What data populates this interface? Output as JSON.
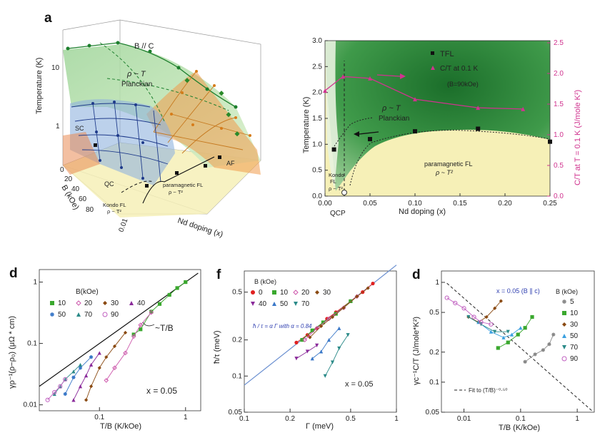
{
  "panel_letters": {
    "a": "a",
    "d1": "d",
    "f": "f",
    "d2": "d"
  },
  "colors": {
    "green": "#1d7f2d",
    "pink": "#d0338f",
    "sand": "#f6f0b7",
    "blue_surface": "#8fb2de",
    "orange_surface": "#f09a4a"
  },
  "chart_data": [
    {
      "type": "scatter",
      "panel": "a-left",
      "three_d": true,
      "title": "B // C",
      "xlabel": "Nd doping (x)",
      "ylabel": "B (kOe)",
      "zlabel": "Temperature (K)",
      "zticks": [
        "1",
        "10"
      ],
      "yticks": [
        "0",
        "20",
        "40",
        "60",
        "80"
      ],
      "xticks": [
        "0.01"
      ],
      "region_labels": {
        "planckian_1": "ρ ~ T",
        "planckian_2": "Planckian",
        "sc": "SC",
        "qc": "QC",
        "af": "AF",
        "para_fl_1": "paramagnetic FL",
        "para_fl_2": "ρ ~ T²",
        "kondo_1": "Kondo FL",
        "kondo_2": "ρ ~ T²"
      }
    },
    {
      "type": "scatter",
      "panel": "a-right",
      "xlabel": "Nd doping (x)",
      "ylabel": "Temperature (K)",
      "y2label": "C/T at T = 0.1 K (J/mole K²)",
      "xlim": [
        0,
        0.25
      ],
      "ylim": [
        0,
        3.0
      ],
      "y2lim": [
        0,
        2.5
      ],
      "xticks": [
        "0.00",
        "0.05",
        "0.10",
        "0.15",
        "0.20",
        "0.25"
      ],
      "yticks": [
        "0.0",
        "0.5",
        "1.0",
        "1.5",
        "2.0",
        "2.5",
        "3.0"
      ],
      "y2ticks": [
        "0.0",
        "0.5",
        "1.0",
        "1.5",
        "2.0",
        "2.5"
      ],
      "legend": {
        "tfl": "TFL",
        "ct": "C/T at 0.1 K",
        "field": "(B=90kOe)"
      },
      "annotations": {
        "qcp": "QCP",
        "planck_1": "ρ ~ T",
        "planck_2": "Planckian",
        "para_1": "paramagnetic FL",
        "para_2": "ρ ~ T²",
        "kondo_1": "Kondo",
        "kondo_2": "FL",
        "kondo_3": "ρ ~ T²"
      },
      "series": [
        {
          "name": "TFL",
          "x": [
            0.01,
            0.03,
            0.05,
            0.1,
            0.17,
            0.25
          ],
          "y": [
            0.9,
            0.05,
            1.1,
            1.25,
            1.3,
            1.05
          ]
        },
        {
          "name": "C/T at 0.1 K",
          "x": [
            0.0,
            0.02,
            0.05,
            0.1,
            0.17,
            0.22
          ],
          "y": [
            1.72,
            1.95,
            1.92,
            1.58,
            1.44,
            1.42
          ]
        }
      ]
    },
    {
      "type": "scatter",
      "panel": "d-left",
      "xscale": "log",
      "yscale": "log",
      "xlabel": "T/B (K/kOe)",
      "ylabel": "γρ⁻¹(ρ−ρ₀) (μΩ * cm)",
      "xlim": [
        0.02,
        1.5
      ],
      "ylim": [
        0.008,
        1.6
      ],
      "xticks": [
        "0.1",
        "1"
      ],
      "yticks": [
        "0.01",
        "0.1",
        "1"
      ],
      "legend_title": "B(kOe)",
      "annotation": "~T/B",
      "doping_label": "x = 0.05",
      "series": [
        {
          "name": "10",
          "color": "#3aa82e",
          "x": [
            0.25,
            0.3,
            0.4,
            0.5,
            0.65,
            0.8,
            1.0
          ],
          "y": [
            0.14,
            0.17,
            0.33,
            0.44,
            0.62,
            0.8,
            1.0
          ]
        },
        {
          "name": "20",
          "color": "#cc55aa",
          "x": [
            0.12,
            0.15,
            0.2,
            0.25,
            0.3,
            0.4
          ],
          "y": [
            0.025,
            0.04,
            0.07,
            0.13,
            0.2,
            0.32
          ]
        },
        {
          "name": "30",
          "color": "#8a4a12",
          "x": [
            0.07,
            0.08,
            0.1,
            0.12,
            0.15,
            0.2
          ],
          "y": [
            0.012,
            0.02,
            0.04,
            0.06,
            0.09,
            0.15
          ]
        },
        {
          "name": "40",
          "color": "#8a2a9a",
          "x": [
            0.05,
            0.06,
            0.07,
            0.08,
            0.1
          ],
          "y": [
            0.012,
            0.02,
            0.03,
            0.045,
            0.07
          ]
        },
        {
          "name": "50",
          "color": "#3a78c8",
          "x": [
            0.04,
            0.05,
            0.06,
            0.08
          ],
          "y": [
            0.015,
            0.028,
            0.04,
            0.06
          ]
        },
        {
          "name": "70",
          "color": "#2a8a88",
          "x": [
            0.03,
            0.035,
            0.04,
            0.05,
            0.06
          ],
          "y": [
            0.015,
            0.02,
            0.026,
            0.035,
            0.045
          ]
        },
        {
          "name": "90",
          "color": "#c060c0",
          "x": [
            0.025,
            0.03,
            0.035,
            0.04
          ],
          "y": [
            0.012,
            0.016,
            0.02,
            0.026
          ]
        }
      ],
      "fit_line": {
        "x": [
          0.02,
          1.4
        ],
        "y": [
          0.02,
          1.4
        ]
      }
    },
    {
      "type": "scatter",
      "panel": "f",
      "xscale": "log",
      "yscale": "log",
      "xlabel": "Γ (meV)",
      "ylabel": "ħ/τ (meV)",
      "xlim": [
        0.1,
        1.0
      ],
      "ylim": [
        0.05,
        0.75
      ],
      "xticks": [
        "0.1",
        "0.2",
        "0.5",
        "1"
      ],
      "yticks": [
        "0.05",
        "0.1",
        "0.2",
        "0.5"
      ],
      "legend_title": "B (kOe)",
      "formula": "ħ / τ = α Γ with α = 0.84",
      "doping_label": "x = 0.05",
      "series": [
        {
          "name": "0",
          "color": "#e02020",
          "x": [
            0.22,
            0.26,
            0.3,
            0.35,
            0.4,
            0.5,
            0.6,
            0.7
          ],
          "y": [
            0.19,
            0.22,
            0.25,
            0.3,
            0.34,
            0.42,
            0.5,
            0.59
          ]
        },
        {
          "name": "10",
          "color": "#3aa82e",
          "x": [
            0.24,
            0.28,
            0.33,
            0.4,
            0.5
          ],
          "y": [
            0.2,
            0.24,
            0.28,
            0.33,
            0.42
          ]
        },
        {
          "name": "20",
          "color": "#cc55aa",
          "x": [
            0.25,
            0.3,
            0.36,
            0.45,
            0.55
          ],
          "y": [
            0.2,
            0.25,
            0.3,
            0.37,
            0.46
          ]
        },
        {
          "name": "30",
          "color": "#8a4a12",
          "x": [
            0.27,
            0.32,
            0.38,
            0.45,
            0.55,
            0.65
          ],
          "y": [
            0.21,
            0.26,
            0.31,
            0.37,
            0.46,
            0.54
          ]
        },
        {
          "name": "40",
          "color": "#8a2a9a",
          "x": [
            0.22,
            0.26,
            0.3
          ],
          "y": [
            0.14,
            0.16,
            0.18
          ]
        },
        {
          "name": "50",
          "color": "#3a78c8",
          "x": [
            0.28,
            0.32,
            0.36,
            0.42
          ],
          "y": [
            0.14,
            0.16,
            0.2,
            0.25
          ]
        },
        {
          "name": "70",
          "color": "#2a8a88",
          "x": [
            0.34,
            0.38,
            0.42,
            0.48
          ],
          "y": [
            0.1,
            0.13,
            0.17,
            0.22
          ]
        }
      ],
      "fit_line": {
        "x": [
          0.1,
          1.0
        ],
        "y": [
          0.084,
          0.84
        ]
      }
    },
    {
      "type": "scatter",
      "panel": "d-right",
      "xscale": "log",
      "yscale": "log",
      "xlabel": "T/B (K/kOe)",
      "ylabel": "γc⁻¹C/T (J/mole*K²)",
      "xlim": [
        0.004,
        2.0
      ],
      "ylim": [
        0.05,
        1.3
      ],
      "xticks": [
        "0.01",
        "0.1",
        "1"
      ],
      "yticks": [
        "0.05",
        "0.1",
        "0.2",
        "0.5",
        "1"
      ],
      "legend_title": "B (kOe)",
      "doping_label": "x = 0.05 (B ∥ c)",
      "fit_label": "Fit to (T/B)⁻⁰·⁵⁰",
      "series": [
        {
          "name": "5",
          "color": "#888888",
          "x": [
            0.12,
            0.18,
            0.25,
            0.32,
            0.38
          ],
          "y": [
            0.16,
            0.19,
            0.21,
            0.24,
            0.3
          ]
        },
        {
          "name": "10",
          "color": "#3aa82e",
          "x": [
            0.04,
            0.06,
            0.09,
            0.12,
            0.16
          ],
          "y": [
            0.22,
            0.25,
            0.3,
            0.35,
            0.45
          ]
        },
        {
          "name": "30",
          "color": "#8a4a12",
          "x": [
            0.012,
            0.018,
            0.025,
            0.035,
            0.045
          ],
          "y": [
            0.45,
            0.4,
            0.45,
            0.55,
            0.65
          ]
        },
        {
          "name": "50",
          "color": "#3aa0e0",
          "x": [
            0.018,
            0.03,
            0.05,
            0.07,
            0.1
          ],
          "y": [
            0.4,
            0.32,
            0.28,
            0.3,
            0.35
          ]
        },
        {
          "name": "70",
          "color": "#2a8a88",
          "x": [
            0.012,
            0.02,
            0.035,
            0.06
          ],
          "y": [
            0.45,
            0.38,
            0.32,
            0.32
          ]
        },
        {
          "name": "90",
          "color": "#c060c0",
          "x": [
            0.005,
            0.007,
            0.01,
            0.015,
            0.02,
            0.03
          ],
          "y": [
            0.7,
            0.62,
            0.55,
            0.45,
            0.4,
            0.38
          ]
        }
      ],
      "fit_line": {
        "x": [
          0.005,
          1.8
        ],
        "y": [
          0.98,
          0.052
        ]
      }
    }
  ]
}
